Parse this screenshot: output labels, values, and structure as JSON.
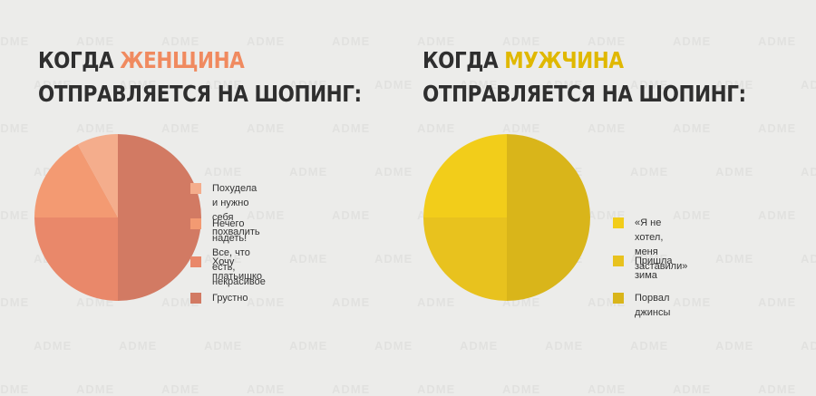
{
  "watermark_text": "ADME",
  "charts": {
    "left": {
      "title_line1_prefix": "КОГДА ",
      "title_highlight": "ЖЕНЩИНА",
      "title_line2": "ОТПРАВЛЯЕТСЯ НА ШОПИНГ:"
    },
    "right": {
      "title_line1_prefix": "КОГДА ",
      "title_highlight": "МУЖЧИНА",
      "title_line2": "ОТПРАВЛЯЕТСЯ НА ШОПИНГ:"
    }
  },
  "chart_data": [
    {
      "type": "pie",
      "title": "КОГДА ЖЕНЩИНА ОТПРАВЛЯЕТСЯ НА ШОПИНГ:",
      "slices": [
        {
          "label": "Похудела и нужно\nсебя похвалить",
          "value": 8,
          "color": "#f4ad8c"
        },
        {
          "label": "Нечего надеть!\nВсе, что есть, некрасивое",
          "value": 17,
          "color": "#f39a72"
        },
        {
          "label": "Хочу платьишко",
          "value": 25,
          "color": "#e9886a"
        },
        {
          "label": "Грустно",
          "value": 50,
          "color": "#d27a63"
        }
      ]
    },
    {
      "type": "pie",
      "title": "КОГДА МУЖЧИНА ОТПРАВЛЯЕТСЯ НА ШОПИНГ:",
      "slices": [
        {
          "label": "«Я не хотел, меня заставили»",
          "value": 25,
          "color": "#f2cd1a"
        },
        {
          "label": "Пришла зима",
          "value": 25,
          "color": "#e8c21e"
        },
        {
          "label": "Порвал джинсы",
          "value": 50,
          "color": "#d9b51a"
        }
      ]
    }
  ]
}
